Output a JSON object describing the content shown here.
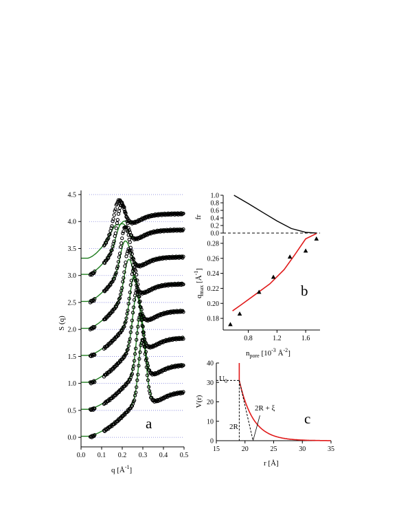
{
  "chart_data": [
    {
      "panel": "a",
      "type": "scatter",
      "panel_label": "a",
      "xlabel_main": "q [Å",
      "xlabel_sup": "-1",
      "xlabel_end": "]",
      "ylabel": "S (q)",
      "xlim": [
        0.0,
        0.5
      ],
      "ylim": [
        -0.1,
        4.5
      ],
      "xticks": [
        "0.0",
        "0.1",
        "0.2",
        "0.3",
        "0.4",
        "0.5"
      ],
      "yticks": [
        "0.0",
        "0.5",
        "1.0",
        "1.5",
        "2.0",
        "2.5",
        "3.0",
        "3.5",
        "4.0",
        "4.5"
      ],
      "baselines": [
        0.0,
        0.5,
        1.0,
        1.5,
        2.0,
        2.5,
        3.0,
        3.5,
        4.0,
        4.5
      ],
      "curves": [
        {
          "offset": 0.0,
          "qpeak": 0.298,
          "peak": 1.8,
          "q_start": 0.045,
          "fit_peak": 1.82
        },
        {
          "offset": 0.5,
          "qpeak": 0.288,
          "peak": 1.78,
          "q_start": 0.045,
          "fit_peak": 1.76
        },
        {
          "offset": 1.0,
          "qpeak": 0.27,
          "peak": 1.72,
          "q_start": 0.045,
          "fit_peak": 1.62
        },
        {
          "offset": 1.5,
          "qpeak": 0.258,
          "peak": 1.64,
          "q_start": 0.045,
          "fit_peak": 1.48
        },
        {
          "offset": 2.0,
          "qpeak": 0.232,
          "peak": 1.48,
          "q_start": 0.045,
          "fit_peak": 1.28
        },
        {
          "offset": 2.5,
          "qpeak": 0.215,
          "peak": 1.4,
          "q_start": 0.045,
          "fit_peak": 1.12
        },
        {
          "offset": 3.0,
          "qpeak": 0.198,
          "peak": 1.32,
          "q_start": 0.045,
          "fit_peak": 0.94
        },
        {
          "offset": 3.3,
          "qpeak": 0.185,
          "peak": 1.09,
          "q_start": 0.08,
          "fit_peak": 0.62
        }
      ]
    },
    {
      "panel": "b-top",
      "type": "line",
      "ylabel": "fr",
      "ylim": [
        0.0,
        1.0
      ],
      "yticks": [
        "0.0",
        "0.2",
        "0.4",
        "0.6",
        "0.8",
        "1.0"
      ],
      "x": [
        0.6,
        0.8,
        1.0,
        1.2,
        1.4,
        1.6,
        1.75
      ],
      "y": [
        1.0,
        0.78,
        0.55,
        0.32,
        0.12,
        0.02,
        0.0
      ]
    },
    {
      "panel": "b",
      "type": "scatter",
      "panel_label": "b",
      "xlabel_main": "n",
      "xlabel_sub": "pore",
      "xlabel_mid": " [10",
      "xlabel_sup1": "-3",
      "xlabel_mid2": " Å",
      "xlabel_sup2": "-2",
      "xlabel_end": "]",
      "ylabel_main": "q",
      "ylabel_sub": "max",
      "ylabel_unit": " [Å",
      "ylabel_sup": "-1",
      "ylabel_end": "]",
      "xlim": [
        0.45,
        1.8
      ],
      "ylim": [
        0.17,
        0.29
      ],
      "xticks": [
        "0.8",
        "1.2",
        "1.6"
      ],
      "yticks": [
        "0.18",
        "0.20",
        "0.22",
        "0.24",
        "0.26",
        "0.28"
      ],
      "points": {
        "x": [
          0.55,
          0.68,
          0.95,
          1.15,
          1.38,
          1.6,
          1.75
        ],
        "y": [
          0.172,
          0.186,
          0.215,
          0.235,
          0.262,
          0.27,
          0.286
        ]
      },
      "line": {
        "x": [
          0.58,
          0.7,
          0.9,
          1.1,
          1.3,
          1.45,
          1.6,
          1.75
        ],
        "y": [
          0.19,
          0.198,
          0.212,
          0.226,
          0.245,
          0.265,
          0.286,
          0.293
        ]
      }
    },
    {
      "panel": "c",
      "type": "line",
      "panel_label": "c",
      "xlabel": "r [Å]",
      "ylabel": "V(r)",
      "xlim": [
        15,
        35
      ],
      "ylim": [
        0,
        40
      ],
      "xticks": [
        "15",
        "20",
        "25",
        "30",
        "35"
      ],
      "yticks": [
        "0",
        "10",
        "20",
        "30",
        "40"
      ],
      "annotation_u0": "U",
      "annotation_u0_sub": "0",
      "annotation_2r": "2R",
      "annotation_2rxi": "2R + ξ",
      "wall_r": 19,
      "u0": 31,
      "decay_length": 2.4
    }
  ]
}
